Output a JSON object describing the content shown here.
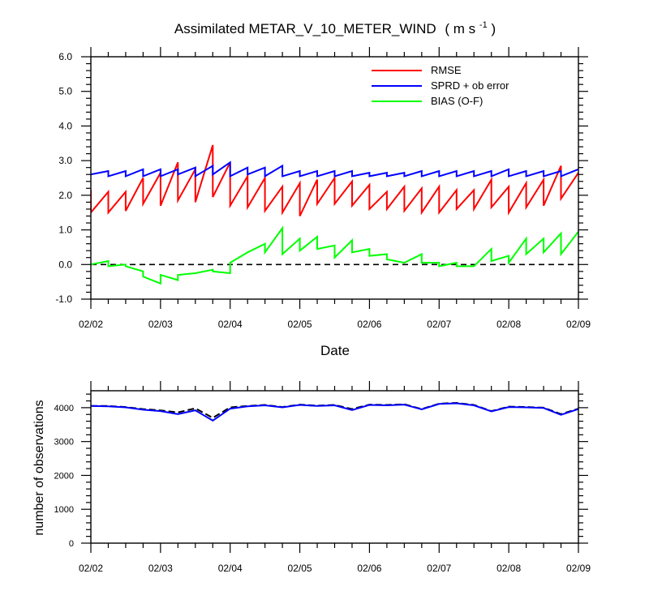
{
  "chart_data": [
    {
      "type": "line",
      "title": "Assimilated METAR_V_10_METER_WIND",
      "title_units_prefix": "( m s",
      "title_units_exponent": "-1",
      "title_units_suffix": " )",
      "xlabel": "Date",
      "ylabel": "",
      "x_tick_labels": [
        "02/02",
        "02/03",
        "02/04",
        "02/05",
        "02/06",
        "02/07",
        "02/08",
        "02/09"
      ],
      "xlim": [
        0,
        7
      ],
      "ylim": [
        -1.0,
        6.0
      ],
      "y_ticks": [
        -1.0,
        0.0,
        1.0,
        2.0,
        3.0,
        4.0,
        5.0,
        6.0
      ],
      "y_tick_labels": [
        "-1.0",
        "0.0",
        "1.0",
        "2.0",
        "3.0",
        "4.0",
        "5.0",
        "6.0"
      ],
      "legend_placement": "top-right",
      "reference_line": {
        "y": 0,
        "style": "dashed",
        "color": "#000000"
      },
      "series": [
        {
          "name": "RMSE",
          "color": "#ff0000",
          "points": [
            [
              0,
              2.15
            ],
            [
              0,
              1.5
            ],
            [
              0.25,
              2.1
            ],
            [
              0.25,
              1.5
            ],
            [
              0.5,
              2.1
            ],
            [
              0.5,
              1.55
            ],
            [
              0.75,
              2.5
            ],
            [
              0.75,
              1.75
            ],
            [
              1,
              2.65
            ],
            [
              1,
              1.7
            ],
            [
              1.25,
              2.95
            ],
            [
              1.25,
              1.85
            ],
            [
              1.5,
              2.75
            ],
            [
              1.5,
              1.8
            ],
            [
              1.75,
              3.45
            ],
            [
              1.75,
              1.95
            ],
            [
              2,
              2.95
            ],
            [
              2,
              1.7
            ],
            [
              2.25,
              2.55
            ],
            [
              2.25,
              1.65
            ],
            [
              2.5,
              2.5
            ],
            [
              2.5,
              1.55
            ],
            [
              2.75,
              2.25
            ],
            [
              2.75,
              1.5
            ],
            [
              3,
              2.35
            ],
            [
              3,
              1.4
            ],
            [
              3.25,
              2.45
            ],
            [
              3.25,
              1.75
            ],
            [
              3.5,
              2.5
            ],
            [
              3.5,
              1.75
            ],
            [
              3.75,
              2.4
            ],
            [
              3.75,
              1.7
            ],
            [
              4,
              2.3
            ],
            [
              4,
              1.6
            ],
            [
              4.25,
              2.1
            ],
            [
              4.25,
              1.6
            ],
            [
              4.5,
              2.25
            ],
            [
              4.5,
              1.55
            ],
            [
              4.75,
              2.2
            ],
            [
              4.75,
              1.5
            ],
            [
              5,
              2.25
            ],
            [
              5,
              1.5
            ],
            [
              5.25,
              2.15
            ],
            [
              5.25,
              1.6
            ],
            [
              5.5,
              2.15
            ],
            [
              5.5,
              1.6
            ],
            [
              5.75,
              2.45
            ],
            [
              5.75,
              1.65
            ],
            [
              6,
              2.25
            ],
            [
              6,
              1.5
            ],
            [
              6.25,
              2.35
            ],
            [
              6.25,
              1.65
            ],
            [
              6.5,
              2.45
            ],
            [
              6.5,
              1.7
            ],
            [
              6.75,
              2.85
            ],
            [
              6.75,
              1.9
            ],
            [
              7,
              2.65
            ]
          ]
        },
        {
          "name": "SPRD + ob error",
          "color": "#0000ff",
          "points": [
            [
              0,
              2.6
            ],
            [
              0.25,
              2.7
            ],
            [
              0.25,
              2.55
            ],
            [
              0.5,
              2.7
            ],
            [
              0.5,
              2.55
            ],
            [
              0.75,
              2.75
            ],
            [
              0.75,
              2.55
            ],
            [
              1,
              2.75
            ],
            [
              1,
              2.55
            ],
            [
              1.25,
              2.75
            ],
            [
              1.25,
              2.6
            ],
            [
              1.5,
              2.8
            ],
            [
              1.5,
              2.55
            ],
            [
              1.75,
              2.85
            ],
            [
              1.75,
              2.6
            ],
            [
              2,
              2.95
            ],
            [
              2,
              2.55
            ],
            [
              2.25,
              2.8
            ],
            [
              2.25,
              2.6
            ],
            [
              2.5,
              2.8
            ],
            [
              2.5,
              2.55
            ],
            [
              2.75,
              2.85
            ],
            [
              2.75,
              2.55
            ],
            [
              3,
              2.7
            ],
            [
              3,
              2.55
            ],
            [
              3.25,
              2.7
            ],
            [
              3.25,
              2.55
            ],
            [
              3.5,
              2.7
            ],
            [
              3.5,
              2.55
            ],
            [
              3.75,
              2.7
            ],
            [
              3.75,
              2.55
            ],
            [
              4,
              2.65
            ],
            [
              4,
              2.55
            ],
            [
              4.25,
              2.65
            ],
            [
              4.25,
              2.55
            ],
            [
              4.5,
              2.65
            ],
            [
              4.5,
              2.55
            ],
            [
              4.75,
              2.7
            ],
            [
              4.75,
              2.55
            ],
            [
              5,
              2.7
            ],
            [
              5,
              2.55
            ],
            [
              5.25,
              2.7
            ],
            [
              5.25,
              2.55
            ],
            [
              5.5,
              2.7
            ],
            [
              5.5,
              2.55
            ],
            [
              5.75,
              2.7
            ],
            [
              5.75,
              2.55
            ],
            [
              6,
              2.75
            ],
            [
              6,
              2.55
            ],
            [
              6.25,
              2.7
            ],
            [
              6.25,
              2.55
            ],
            [
              6.5,
              2.7
            ],
            [
              6.5,
              2.55
            ],
            [
              6.75,
              2.7
            ],
            [
              6.75,
              2.55
            ],
            [
              7,
              2.75
            ]
          ]
        },
        {
          "name": "BIAS (O-F)",
          "color": "#00ff00",
          "points": [
            [
              0,
              0.0
            ],
            [
              0.25,
              0.1
            ],
            [
              0.25,
              -0.05
            ],
            [
              0.5,
              0.0
            ],
            [
              0.5,
              -0.05
            ],
            [
              0.75,
              -0.2
            ],
            [
              0.75,
              -0.35
            ],
            [
              1,
              -0.55
            ],
            [
              1,
              -0.3
            ],
            [
              1.25,
              -0.45
            ],
            [
              1.25,
              -0.3
            ],
            [
              1.5,
              -0.25
            ],
            [
              1.5,
              -0.25
            ],
            [
              1.75,
              -0.15
            ],
            [
              1.75,
              -0.2
            ],
            [
              2,
              -0.25
            ],
            [
              2,
              0.05
            ],
            [
              2.25,
              0.35
            ],
            [
              2.25,
              0.35
            ],
            [
              2.5,
              0.6
            ],
            [
              2.5,
              0.35
            ],
            [
              2.75,
              1.05
            ],
            [
              2.75,
              0.3
            ],
            [
              3,
              0.75
            ],
            [
              3,
              0.4
            ],
            [
              3.25,
              0.8
            ],
            [
              3.25,
              0.45
            ],
            [
              3.5,
              0.55
            ],
            [
              3.5,
              0.2
            ],
            [
              3.75,
              0.7
            ],
            [
              3.75,
              0.35
            ],
            [
              4,
              0.45
            ],
            [
              4,
              0.25
            ],
            [
              4.25,
              0.3
            ],
            [
              4.25,
              0.15
            ],
            [
              4.5,
              0.05
            ],
            [
              4.5,
              0.05
            ],
            [
              4.75,
              0.3
            ],
            [
              4.75,
              0.05
            ],
            [
              5,
              0.05
            ],
            [
              5,
              -0.05
            ],
            [
              5.25,
              0.05
            ],
            [
              5.25,
              -0.05
            ],
            [
              5.5,
              -0.05
            ],
            [
              5.5,
              -0.05
            ],
            [
              5.75,
              0.45
            ],
            [
              5.75,
              0.1
            ],
            [
              6,
              0.25
            ],
            [
              6,
              0.05
            ],
            [
              6.25,
              0.75
            ],
            [
              6.25,
              0.3
            ],
            [
              6.5,
              0.75
            ],
            [
              6.5,
              0.35
            ],
            [
              6.75,
              0.9
            ],
            [
              6.75,
              0.3
            ],
            [
              7,
              0.95
            ]
          ]
        }
      ]
    },
    {
      "type": "line",
      "title": "",
      "xlabel": "",
      "ylabel": "number of observations",
      "x_tick_labels": [
        "02/02",
        "02/03",
        "02/04",
        "02/05",
        "02/06",
        "02/07",
        "02/08",
        "02/09"
      ],
      "xlim": [
        0,
        7
      ],
      "ylim": [
        0,
        4500
      ],
      "y_ticks": [
        0,
        1000,
        2000,
        3000,
        4000
      ],
      "y_tick_labels": [
        "0",
        "1000",
        "2000",
        "3000",
        "4000"
      ],
      "series": [
        {
          "color": "#000000",
          "style": "dashed",
          "points": [
            [
              0,
              4050
            ],
            [
              0.25,
              4050
            ],
            [
              0.5,
              4020
            ],
            [
              0.75,
              3960
            ],
            [
              1,
              3920
            ],
            [
              1.25,
              3860
            ],
            [
              1.5,
              3980
            ],
            [
              1.75,
              3700
            ],
            [
              2,
              4010
            ],
            [
              2.25,
              4050
            ],
            [
              2.5,
              4080
            ],
            [
              2.75,
              4020
            ],
            [
              3,
              4090
            ],
            [
              3.25,
              4060
            ],
            [
              3.5,
              4080
            ],
            [
              3.75,
              3960
            ],
            [
              4,
              4090
            ],
            [
              4.25,
              4080
            ],
            [
              4.5,
              4100
            ],
            [
              4.75,
              3960
            ],
            [
              5,
              4120
            ],
            [
              5.25,
              4140
            ],
            [
              5.5,
              4080
            ],
            [
              5.75,
              3900
            ],
            [
              6,
              4030
            ],
            [
              6.25,
              4020
            ],
            [
              6.5,
              4000
            ],
            [
              6.75,
              3810
            ],
            [
              7,
              3970
            ]
          ]
        },
        {
          "color": "#0000ff",
          "style": "solid",
          "points": [
            [
              0,
              4050
            ],
            [
              0.25,
              4040
            ],
            [
              0.5,
              4010
            ],
            [
              0.75,
              3940
            ],
            [
              1,
              3900
            ],
            [
              1.25,
              3810
            ],
            [
              1.5,
              3920
            ],
            [
              1.75,
              3620
            ],
            [
              2,
              3970
            ],
            [
              2.25,
              4040
            ],
            [
              2.5,
              4070
            ],
            [
              2.75,
              4010
            ],
            [
              3,
              4080
            ],
            [
              3.25,
              4050
            ],
            [
              3.5,
              4070
            ],
            [
              3.75,
              3930
            ],
            [
              4,
              4080
            ],
            [
              4.25,
              4070
            ],
            [
              4.5,
              4090
            ],
            [
              4.75,
              3950
            ],
            [
              5,
              4110
            ],
            [
              5.25,
              4130
            ],
            [
              5.5,
              4070
            ],
            [
              5.75,
              3890
            ],
            [
              6,
              4020
            ],
            [
              6.25,
              4010
            ],
            [
              6.5,
              3990
            ],
            [
              6.75,
              3790
            ],
            [
              7,
              3960
            ]
          ]
        }
      ]
    }
  ]
}
